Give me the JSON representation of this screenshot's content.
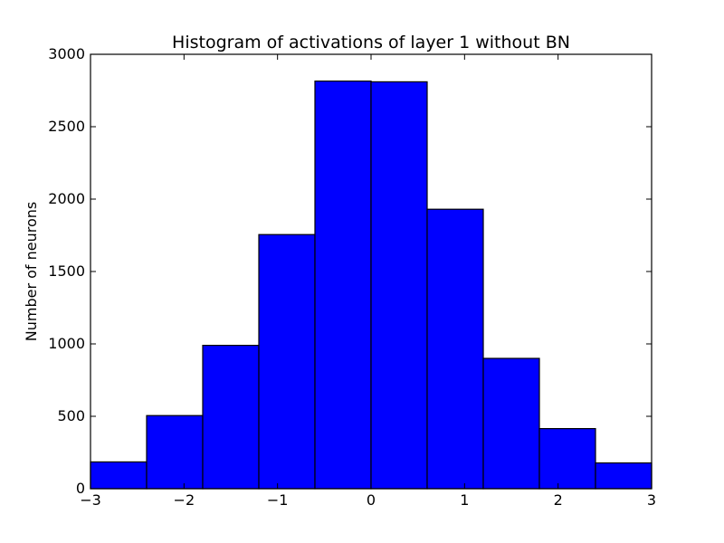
{
  "chart_data": {
    "type": "bar",
    "title": "Histogram of activations of layer 1  without BN",
    "xlabel": "",
    "ylabel": "Number of neurons",
    "bin_edges": [
      -3,
      -2.4,
      -1.8,
      -1.2,
      -0.6,
      0,
      0.6,
      1.2,
      1.8,
      2.4,
      3
    ],
    "values": [
      185,
      505,
      990,
      1755,
      2815,
      2810,
      1930,
      900,
      415,
      178
    ],
    "xlim": [
      -3,
      3
    ],
    "ylim": [
      0,
      3000
    ],
    "x_ticks": [
      -3,
      -2,
      -1,
      0,
      1,
      2,
      3
    ],
    "x_tick_labels": [
      "−3",
      "−2",
      "−1",
      "0",
      "1",
      "2",
      "3"
    ],
    "y_ticks": [
      0,
      500,
      1000,
      1500,
      2000,
      2500,
      3000
    ],
    "y_tick_labels": [
      "0",
      "500",
      "1000",
      "1500",
      "2000",
      "2500",
      "3000"
    ],
    "bar_color": "#0000ff",
    "edge_color": "#000000",
    "grid": false
  }
}
